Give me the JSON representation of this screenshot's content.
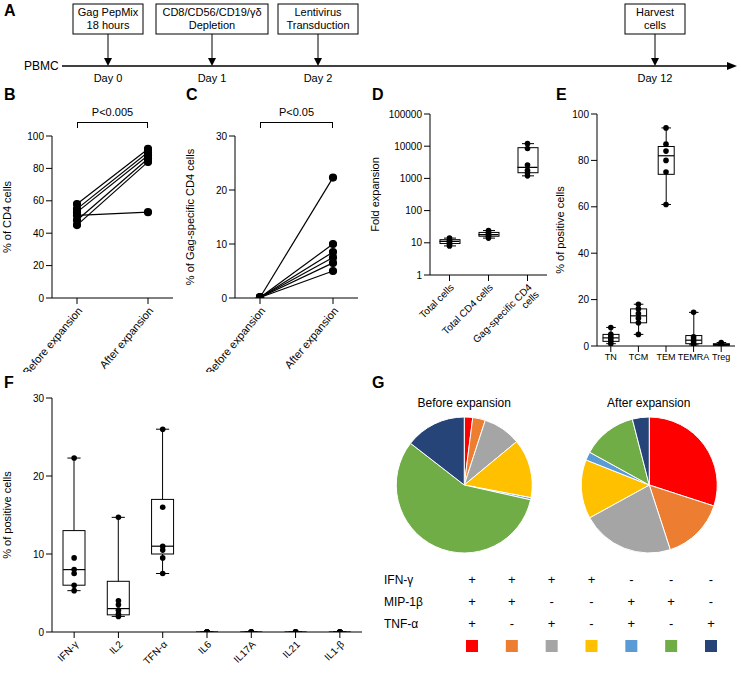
{
  "timeline": {
    "panel": "A",
    "start": "PBMC",
    "steps": [
      {
        "label": [
          "Gag PepMix",
          "18 hours"
        ],
        "day": "Day 0"
      },
      {
        "label": [
          "CD8/CD56/CD19/γδ",
          "Depletion"
        ],
        "day": "Day 1"
      },
      {
        "label": [
          "Lentivirus",
          "Transduction"
        ],
        "day": "Day 2"
      },
      {
        "label": [
          "Harvest",
          "cells"
        ],
        "day": "Day 12"
      }
    ]
  },
  "chart_data": [
    {
      "panel": "B",
      "type": "line",
      "y_label": "% of CD4 cells",
      "annotation": "P<0.005",
      "categories": [
        "Before expansion",
        "After expansion"
      ],
      "ylim": [
        0,
        100
      ],
      "yticks": [
        0,
        20,
        40,
        60,
        80,
        100
      ],
      "marker": "circle",
      "series": [
        {
          "color": "#000000",
          "values": [
            45,
            84
          ]
        },
        {
          "color": "#000000",
          "values": [
            48,
            86
          ]
        },
        {
          "color": "#000000",
          "values": [
            51,
            53
          ]
        },
        {
          "color": "#000000",
          "values": [
            53,
            88
          ]
        },
        {
          "color": "#000000",
          "values": [
            55,
            90
          ]
        },
        {
          "color": "#000000",
          "values": [
            58,
            92
          ]
        }
      ]
    },
    {
      "panel": "C",
      "type": "line",
      "y_label": "% of Gag-specific CD4 cells",
      "annotation": "P<0.05",
      "categories": [
        "Before expansion",
        "After expansion"
      ],
      "ylim": [
        0,
        30
      ],
      "yticks": [
        0,
        10,
        20,
        30
      ],
      "marker": "circle",
      "series": [
        {
          "color": "#000000",
          "values": [
            0.1,
            22.3
          ]
        },
        {
          "color": "#000000",
          "values": [
            0.1,
            10
          ]
        },
        {
          "color": "#000000",
          "values": [
            0.1,
            8.5
          ]
        },
        {
          "color": "#000000",
          "values": [
            0.1,
            7.5
          ]
        },
        {
          "color": "#000000",
          "values": [
            0.1,
            6.5
          ]
        },
        {
          "color": "#000000",
          "values": [
            0.1,
            5
          ]
        }
      ]
    },
    {
      "panel": "D",
      "type": "box",
      "y_label": "Fold expansion",
      "categories": [
        "Total cells",
        "Total CD4 cells",
        "Gag-specific CD4 cells"
      ],
      "log": "y",
      "ylim": [
        1,
        100000
      ],
      "yticks": [
        1,
        10,
        100,
        1000,
        10000,
        100000
      ],
      "color": "#000000",
      "min": [
        8,
        14,
        1200
      ],
      "q1": [
        9.5,
        16,
        1500
      ],
      "median": [
        11,
        18,
        2200
      ],
      "q3": [
        12.5,
        21,
        9000
      ],
      "max": [
        14,
        24,
        12000
      ],
      "points": [
        [
          8,
          9,
          10,
          11,
          12,
          14
        ],
        [
          14,
          16,
          17,
          19,
          21,
          24
        ],
        [
          1200,
          1500,
          1800,
          2600,
          8500,
          12000
        ]
      ]
    },
    {
      "panel": "E",
      "type": "box",
      "y_label": "% of positive cells",
      "categories": [
        "TN",
        "TCM",
        "TEM",
        "TEMRA",
        "Treg"
      ],
      "ylim": [
        0,
        100
      ],
      "yticks": [
        0,
        20,
        40,
        60,
        80,
        100
      ],
      "color": "#000000",
      "min": [
        1,
        5,
        61,
        0.5,
        0
      ],
      "q1": [
        2,
        10,
        74,
        1,
        0.3
      ],
      "median": [
        3.5,
        13,
        82,
        2.5,
        0.6
      ],
      "q3": [
        5,
        16,
        86,
        4.5,
        1
      ],
      "max": [
        8,
        18,
        94,
        14.5,
        1.5
      ],
      "points": [
        [
          1,
          2,
          3,
          4,
          5,
          8
        ],
        [
          5,
          10,
          12,
          14,
          16,
          18
        ],
        [
          61,
          75,
          80,
          84,
          87,
          94
        ],
        [
          0.5,
          1,
          2,
          3,
          4,
          14.5
        ],
        [
          0,
          0.3,
          0.5,
          0.8,
          1,
          1.5
        ]
      ]
    },
    {
      "panel": "F",
      "type": "box",
      "y_label": "% of positive cells",
      "categories": [
        "IFN-γ",
        "IL2",
        "TFN-α",
        "IL6",
        "IL17A",
        "IL21",
        "IL1-β"
      ],
      "ylim": [
        0,
        30
      ],
      "yticks": [
        0,
        10,
        20,
        30
      ],
      "color": "#000000",
      "min": [
        5.3,
        2,
        7.5,
        0,
        0,
        0,
        0
      ],
      "q1": [
        6,
        2.2,
        10,
        0,
        0,
        0,
        0
      ],
      "median": [
        8,
        3,
        11,
        0,
        0,
        0,
        0
      ],
      "q3": [
        13,
        6.5,
        17,
        0,
        0,
        0,
        0
      ],
      "max": [
        22.3,
        14.7,
        26,
        0,
        0,
        0,
        0
      ],
      "points": [
        [
          5.3,
          6,
          7.5,
          8,
          9.5,
          22.3
        ],
        [
          2,
          2.3,
          2.8,
          3.5,
          4,
          14.7
        ],
        [
          7.5,
          9.5,
          10.5,
          11,
          16,
          26
        ],
        [
          0,
          0,
          0,
          0,
          0,
          0
        ],
        [
          0,
          0,
          0,
          0,
          0,
          0
        ],
        [
          0,
          0,
          0,
          0,
          0,
          0
        ],
        [
          0,
          0,
          0,
          0,
          0,
          0
        ]
      ]
    },
    {
      "panel": "G",
      "type": "pie",
      "colors": [
        "#ff0000",
        "#ed7d31",
        "#a5a5a5",
        "#ffc000",
        "#5b9bd5",
        "#70ad47",
        "#264478"
      ],
      "series": [
        {
          "name": "Before expansion",
          "values": [
            2,
            3,
            9,
            14,
            0.5,
            57,
            14.5
          ]
        },
        {
          "name": "After expansion",
          "values": [
            30,
            15,
            22,
            14,
            2,
            13,
            4
          ]
        }
      ],
      "sign_rows": [
        {
          "label": "IFN-γ",
          "signs": [
            "+",
            "+",
            "+",
            "+",
            "-",
            "-",
            "-"
          ]
        },
        {
          "label": "MIP-1β",
          "signs": [
            "+",
            "+",
            "-",
            "-",
            "+",
            "+",
            "-"
          ]
        },
        {
          "label": "TNF-α",
          "signs": [
            "+",
            "-",
            "+",
            "-",
            "+",
            "-",
            "+"
          ]
        }
      ]
    }
  ]
}
